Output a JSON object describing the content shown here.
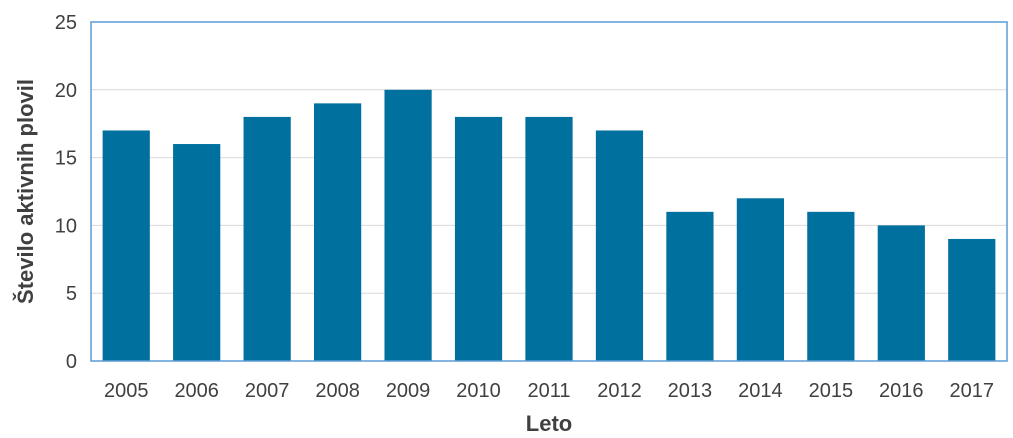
{
  "chart_data": {
    "type": "bar",
    "title": "",
    "xlabel": "Leto",
    "ylabel": "Število aktivnih plovil",
    "categories": [
      "2005",
      "2006",
      "2007",
      "2008",
      "2009",
      "2010",
      "2011",
      "2012",
      "2013",
      "2014",
      "2015",
      "2016",
      "2017"
    ],
    "values": [
      17,
      16,
      18,
      19,
      20,
      18,
      18,
      17,
      11,
      12,
      11,
      10,
      9
    ],
    "ylim": [
      0,
      25
    ],
    "yticks": [
      0,
      5,
      10,
      15,
      20,
      25
    ],
    "grid": true,
    "legend": "none",
    "colors": {
      "bar": "#00709e",
      "frame": "#5b9bd5",
      "grid": "#d9d9d9",
      "text": "#404040"
    }
  }
}
